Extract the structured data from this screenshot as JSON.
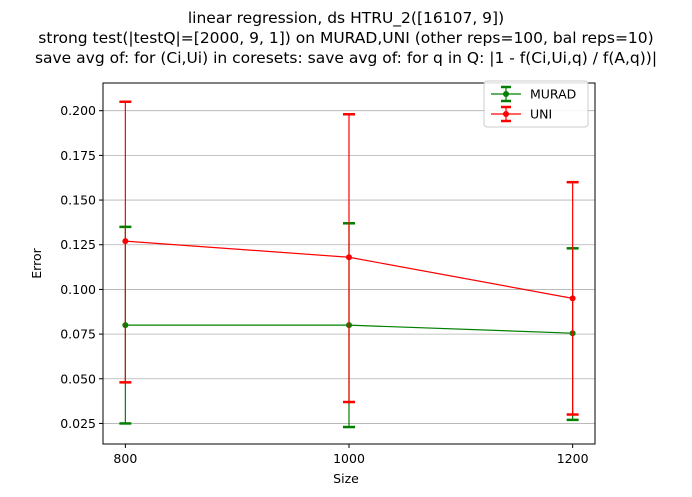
{
  "chart_data": {
    "type": "line",
    "title_lines": [
      "linear regression, ds HTRU_2([16107, 9])",
      "strong test(|testQ|=[2000, 9, 1]) on MURAD,UNI (other reps=100, bal reps=10)",
      "save avg of: for (Ci,Ui) in coresets: save avg of: for q in Q: |1 - f(Ci,Ui,q) / f(A,q))|"
    ],
    "xlabel": "Size",
    "ylabel": "Error",
    "x": [
      800,
      1000,
      1200
    ],
    "x_ticks": [
      "800",
      "1000",
      "1200"
    ],
    "xlim": [
      780,
      1220
    ],
    "ylim": [
      0.0135,
      0.2155
    ],
    "y_ticks": [
      0.025,
      0.05,
      0.075,
      0.1,
      0.125,
      0.15,
      0.175,
      0.2
    ],
    "y_tick_labels": [
      "0.025",
      "0.050",
      "0.075",
      "0.100",
      "0.125",
      "0.150",
      "0.175",
      "0.200"
    ],
    "grid": "horizontal",
    "legend_position": "top-right",
    "series": [
      {
        "name": "MURAD",
        "color": "#008000",
        "values": [
          0.08,
          0.08,
          0.0755
        ],
        "err_low": [
          0.025,
          0.023,
          0.027
        ],
        "err_high": [
          0.135,
          0.137,
          0.123
        ]
      },
      {
        "name": "UNI",
        "color": "#ff0000",
        "values": [
          0.127,
          0.118,
          0.095
        ],
        "err_low": [
          0.048,
          0.037,
          0.03
        ],
        "err_high": [
          0.205,
          0.198,
          0.16
        ]
      }
    ]
  }
}
